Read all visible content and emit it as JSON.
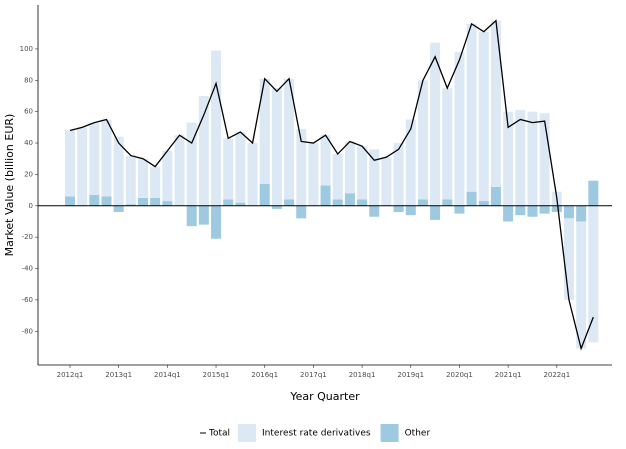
{
  "chart_data": {
    "type": "bar",
    "stacked": true,
    "x_label": "Year Quarter",
    "y_label": "Market Value (billion EUR)",
    "categories": [
      "2012q1",
      null,
      null,
      null,
      "2013q1",
      null,
      null,
      null,
      "2014q1",
      null,
      null,
      null,
      "2015q1",
      null,
      null,
      null,
      "2016q1",
      null,
      null,
      null,
      "2017q1",
      null,
      null,
      null,
      "2018q1",
      null,
      null,
      null,
      "2019q1",
      null,
      null,
      null,
      "2020q1",
      null,
      null,
      null,
      "2021q1",
      null,
      null,
      null,
      "2022q1",
      null,
      null,
      null
    ],
    "series": [
      {
        "name": "Total",
        "type": "line",
        "color": "#000000",
        "values": [
          48,
          50,
          53,
          55,
          40,
          32,
          30,
          25,
          35,
          45,
          40,
          58,
          78,
          43,
          47,
          40,
          81,
          73,
          81,
          41,
          40,
          45,
          33,
          41,
          38,
          29,
          31,
          36,
          49,
          80,
          95,
          75,
          93,
          116,
          111,
          118,
          50,
          55,
          53,
          54,
          5,
          -60,
          -91,
          -71
        ]
      },
      {
        "name": "Interest rate derivatives",
        "type": "bar",
        "color": "#dce9f5",
        "values": [
          42,
          50,
          46,
          49,
          44,
          31,
          25,
          20,
          32,
          45,
          53,
          70,
          99,
          39,
          45,
          40,
          67,
          75,
          77,
          49,
          40,
          32,
          29,
          33,
          34,
          36,
          31,
          40,
          55,
          76,
          104,
          71,
          98,
          107,
          108,
          106,
          60,
          61,
          60,
          59,
          9,
          -52,
          -81,
          -87
        ]
      },
      {
        "name": "Other",
        "type": "bar",
        "color": "#9dcae0",
        "values": [
          6,
          0,
          7,
          6,
          -4,
          1,
          5,
          5,
          3,
          0,
          -13,
          -12,
          -21,
          4,
          2,
          0,
          14,
          -2,
          4,
          -8,
          0,
          13,
          4,
          8,
          4,
          -7,
          0,
          -4,
          -6,
          4,
          -9,
          4,
          -5,
          9,
          3,
          12,
          -10,
          -6,
          -7,
          -5,
          -4,
          -8,
          -10,
          16
        ]
      }
    ],
    "stack_order": [
      "Other",
      "Interest rate derivatives"
    ],
    "ylim": [
      -101.5,
      128
    ],
    "yticks": [
      -80,
      -60,
      -40,
      -20,
      0,
      20,
      40,
      60,
      80,
      100
    ],
    "grid": false,
    "legend": "bottom"
  }
}
